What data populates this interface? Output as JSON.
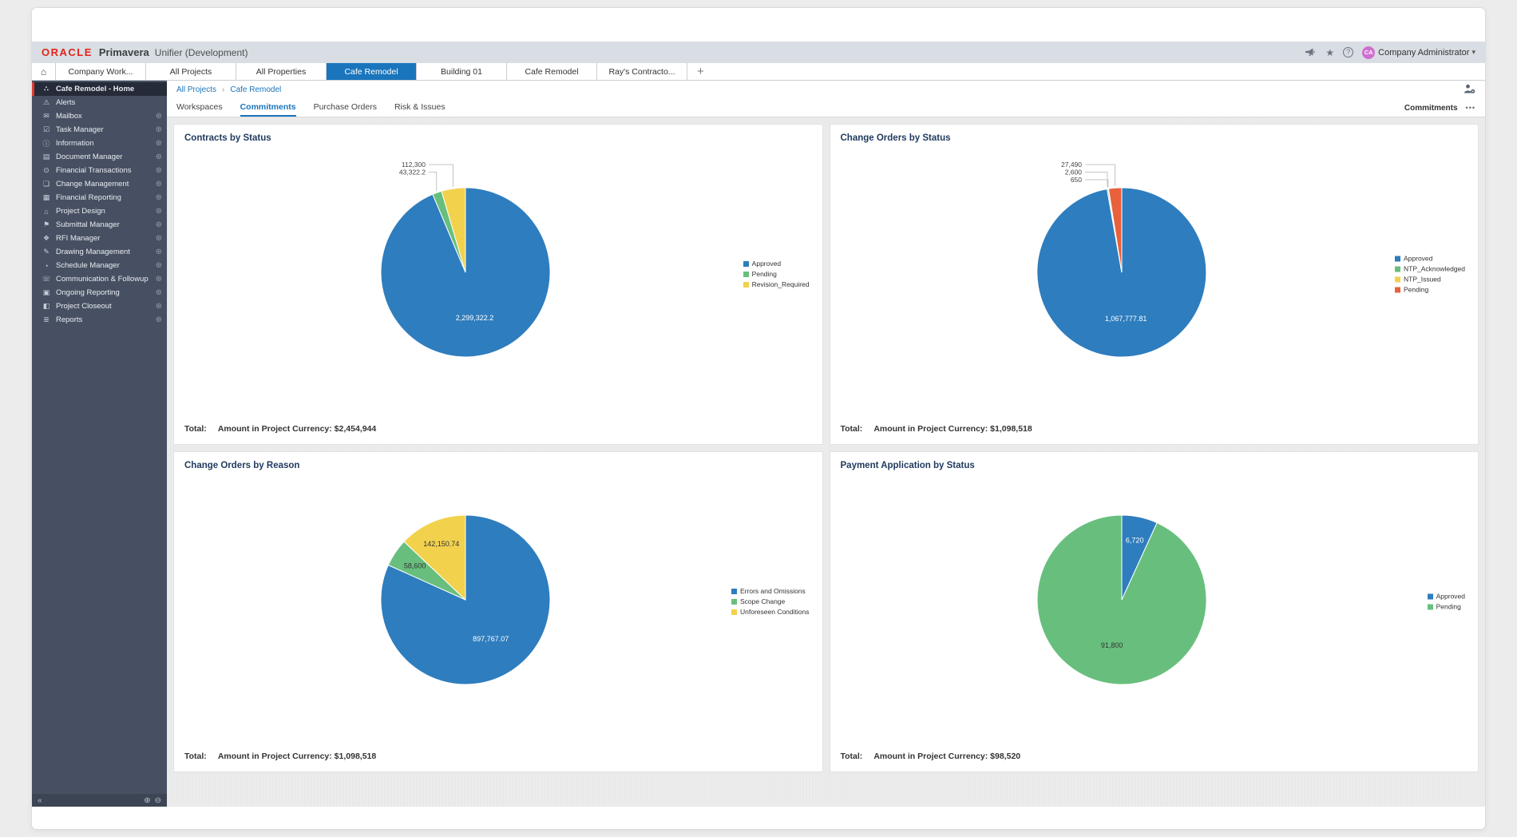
{
  "brand": {
    "oracle": "ORACLE",
    "product": "Primavera",
    "suffix": "Unifier (Development)"
  },
  "header": {
    "icons": [
      "megaphone-icon",
      "star-icon",
      "help-icon"
    ],
    "help_glyph": "?",
    "star_glyph": "★",
    "caret_glyph": "▾",
    "user": {
      "initials": "CA",
      "name": "Company Administrator"
    }
  },
  "project_tabs": {
    "home_glyph": "⌂",
    "add_glyph": "+",
    "tabs": [
      {
        "label": "Company Work...",
        "active": false
      },
      {
        "label": "All Projects",
        "active": false
      },
      {
        "label": "All Properties",
        "active": false
      },
      {
        "label": "Cafe Remodel",
        "active": true
      },
      {
        "label": "Building 01",
        "active": false
      },
      {
        "label": "Cafe Remodel",
        "active": false
      },
      {
        "label": "Ray's Contracto...",
        "active": false
      }
    ]
  },
  "sidebar": {
    "plus_glyph": "⊕",
    "items": [
      {
        "label": "Cafe Remodel - Home",
        "icon": "hierarchy-icon",
        "glyph": "∴",
        "active": true,
        "plus": false
      },
      {
        "label": "Alerts",
        "icon": "alert-icon",
        "glyph": "⚠",
        "active": false,
        "plus": false
      },
      {
        "label": "Mailbox",
        "icon": "mail-icon",
        "glyph": "✉",
        "active": false,
        "plus": true
      },
      {
        "label": "Task Manager",
        "icon": "task-icon",
        "glyph": "☑",
        "active": false,
        "plus": true
      },
      {
        "label": "Information",
        "icon": "info-icon",
        "glyph": "ⓘ",
        "active": false,
        "plus": true
      },
      {
        "label": "Document Manager",
        "icon": "folder-icon",
        "glyph": "▤",
        "active": false,
        "plus": true
      },
      {
        "label": "Financial Transactions",
        "icon": "currency-icon",
        "glyph": "⊙",
        "active": false,
        "plus": true
      },
      {
        "label": "Change Management",
        "icon": "copy-icon",
        "glyph": "❏",
        "active": false,
        "plus": true
      },
      {
        "label": "Financial Reporting",
        "icon": "chart-icon",
        "glyph": "▦",
        "active": false,
        "plus": true
      },
      {
        "label": "Project Design",
        "icon": "building-icon",
        "glyph": "⌂",
        "active": false,
        "plus": true
      },
      {
        "label": "Submittal Manager",
        "icon": "flag-icon",
        "glyph": "⚑",
        "active": false,
        "plus": true
      },
      {
        "label": "RFI Manager",
        "icon": "rfi-icon",
        "glyph": "❖",
        "active": false,
        "plus": true
      },
      {
        "label": "Drawing Management",
        "icon": "pencil-icon",
        "glyph": "✎",
        "active": false,
        "plus": true
      },
      {
        "label": "Schedule Manager",
        "icon": "clock-icon",
        "glyph": "◔",
        "active": false,
        "plus": true
      },
      {
        "label": "Communication & Followup",
        "icon": "phone-icon",
        "glyph": "☏",
        "active": false,
        "plus": true
      },
      {
        "label": "Ongoing Reporting",
        "icon": "report-icon",
        "glyph": "▣",
        "active": false,
        "plus": true
      },
      {
        "label": "Project Closeout",
        "icon": "closeout-icon",
        "glyph": "◧",
        "active": false,
        "plus": true
      },
      {
        "label": "Reports",
        "icon": "reports-icon",
        "glyph": "≣",
        "active": false,
        "plus": true
      }
    ],
    "footer": {
      "collapse": "«",
      "zoom_in": "⊕",
      "zoom_out": "⊖"
    }
  },
  "breadcrumb": {
    "links": [
      "All Projects",
      "Cafe Remodel"
    ],
    "separator": "›"
  },
  "view_tabs": {
    "tabs": [
      "Workspaces",
      "Commitments",
      "Purchase Orders",
      "Risk & Issues"
    ],
    "active": "Commitments",
    "right_label": "Commitments",
    "more": "•••"
  },
  "chart_data": [
    {
      "type": "pie",
      "title": "Contracts by Status",
      "legend_position": "right",
      "slices": [
        {
          "label": "Approved",
          "value": 2299322.2,
          "display": "2,299,322.2",
          "color": "#2e7dbe"
        },
        {
          "label": "Pending",
          "value": 43322.2,
          "display": "43,322.2",
          "color": "#68bf7d"
        },
        {
          "label": "Revision_Required",
          "value": 112300,
          "display": "112,300",
          "color": "#f2d14d"
        }
      ],
      "total_prefix": "Total:",
      "total_text": "Amount in Project Currency: $2,454,944"
    },
    {
      "type": "pie",
      "title": "Change Orders by Status",
      "legend_position": "right",
      "slices": [
        {
          "label": "Approved",
          "value": 1067777.81,
          "display": "1,067,777.81",
          "color": "#2e7dbe"
        },
        {
          "label": "NTP_Acknowledged",
          "value": 2600,
          "display": "2,600",
          "color": "#68bf7d"
        },
        {
          "label": "NTP_Issued",
          "value": 650,
          "display": "650",
          "color": "#f2d14d"
        },
        {
          "label": "Pending",
          "value": 27490,
          "display": "27,490",
          "color": "#e8613c"
        }
      ],
      "total_prefix": "Total:",
      "total_text": "Amount in Project Currency: $1,098,518"
    },
    {
      "type": "pie",
      "title": "Change Orders by Reason",
      "legend_position": "right",
      "slices": [
        {
          "label": "Errors and Omissions",
          "value": 897767.07,
          "display": "897,767.07",
          "color": "#2e7dbe"
        },
        {
          "label": "Scope Change",
          "value": 58600,
          "display": "58,600",
          "color": "#68bf7d"
        },
        {
          "label": "Unforeseen Conditions",
          "value": 142150.74,
          "display": "142,150.74",
          "color": "#f2d14d"
        }
      ],
      "total_prefix": "Total:",
      "total_text": "Amount in Project Currency: $1,098,518"
    },
    {
      "type": "pie",
      "title": "Payment Application by Status",
      "legend_position": "right",
      "slices": [
        {
          "label": "Approved",
          "value": 6720,
          "display": "6,720",
          "color": "#2e7dbe"
        },
        {
          "label": "Pending",
          "value": 91800,
          "display": "91,800",
          "color": "#68bf7d"
        }
      ],
      "total_prefix": "Total:",
      "total_text": "Amount in Project Currency: $98,520"
    }
  ]
}
